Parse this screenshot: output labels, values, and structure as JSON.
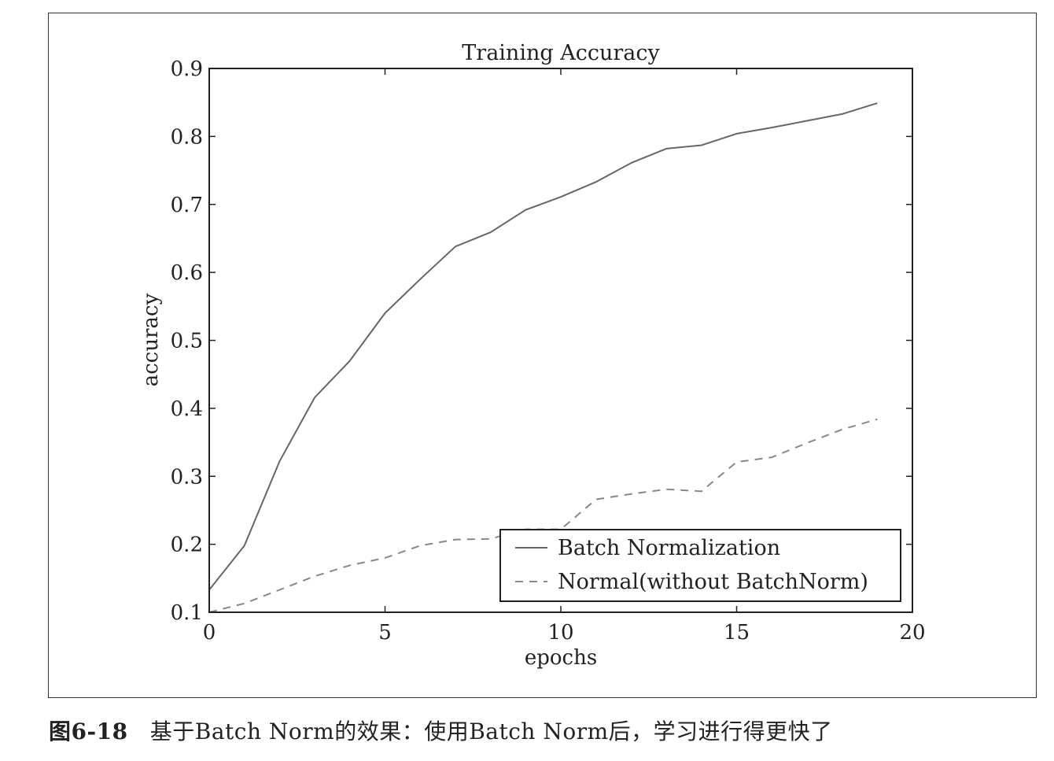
{
  "chart_data": {
    "type": "line",
    "title": "Training Accuracy",
    "xlabel": "epochs",
    "ylabel": "accuracy",
    "xlim": [
      0,
      20
    ],
    "ylim": [
      0.1,
      0.9
    ],
    "xticks": [
      "0",
      "5",
      "10",
      "15",
      "20"
    ],
    "xtick_values": [
      0,
      5,
      10,
      15,
      20
    ],
    "yticks": [
      "0.1",
      "0.2",
      "0.3",
      "0.4",
      "0.5",
      "0.6",
      "0.7",
      "0.8",
      "0.9"
    ],
    "ytick_values": [
      0.1,
      0.2,
      0.3,
      0.4,
      0.5,
      0.6,
      0.7,
      0.8,
      0.9
    ],
    "grid": false,
    "legend_position": "bottom-right",
    "series": [
      {
        "name": "Batch Normalization",
        "style": "solid",
        "color": "#666666",
        "x": [
          0,
          1,
          2,
          3,
          4,
          5,
          6,
          7,
          8,
          9,
          10,
          11,
          12,
          13,
          14,
          15,
          16,
          17,
          18,
          19
        ],
        "y": [
          0.133,
          0.198,
          0.322,
          0.416,
          0.47,
          0.54,
          0.59,
          0.638,
          0.659,
          0.692,
          0.711,
          0.733,
          0.761,
          0.782,
          0.787,
          0.804,
          0.813,
          0.823,
          0.833,
          0.849
        ]
      },
      {
        "name": "Normal(without BatchNorm)",
        "style": "dashed",
        "color": "#888888",
        "x": [
          0,
          1,
          2,
          3,
          4,
          5,
          6,
          7,
          8,
          9,
          10,
          11,
          12,
          13,
          14,
          15,
          16,
          17,
          18,
          19
        ],
        "y": [
          0.1,
          0.113,
          0.133,
          0.153,
          0.169,
          0.18,
          0.198,
          0.207,
          0.208,
          0.222,
          0.222,
          0.266,
          0.274,
          0.281,
          0.278,
          0.321,
          0.328,
          0.349,
          0.369,
          0.384
        ]
      }
    ]
  },
  "caption": {
    "number": "图6-18",
    "text": "基于Batch Norm的效果：使用Batch Norm后，学习进行得更快了"
  }
}
